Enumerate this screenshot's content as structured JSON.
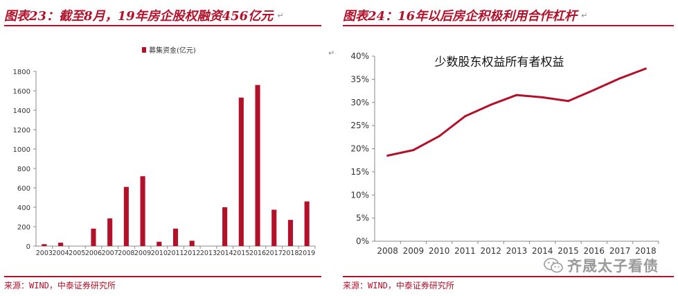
{
  "left": {
    "title": "图表23：截至8月，19年房企股权融资456亿元",
    "source": "来源：WIND，中泰证券研究所",
    "para_mark": "↵"
  },
  "right": {
    "title": "图表24：16年以后房企积极利用合作杠杆",
    "source": "来源：WIND，中泰证券研究所",
    "para_mark": "↵"
  },
  "watermark": {
    "text": "齐晟太子看债",
    "icon": "wechat-icon"
  },
  "accent_color": "#b3102a",
  "chart_data": [
    {
      "type": "bar",
      "title": "",
      "legend": [
        "募集资金(亿元)"
      ],
      "legend_position": "top-center",
      "categories": [
        "2003",
        "2004",
        "2005",
        "2006",
        "2007",
        "2008",
        "2009",
        "2010",
        "2011",
        "2012",
        "2013",
        "2014",
        "2015",
        "2016",
        "2017",
        "2018",
        "2019"
      ],
      "series": [
        {
          "name": "募集资金(亿元)",
          "values": [
            20,
            35,
            0,
            180,
            285,
            610,
            720,
            45,
            180,
            55,
            0,
            400,
            1530,
            1660,
            375,
            270,
            460
          ]
        }
      ],
      "ylim": [
        0,
        1800
      ],
      "yticks": [
        0,
        200,
        400,
        600,
        800,
        1000,
        1200,
        1400,
        1600,
        1800
      ],
      "grid": false,
      "color": "#b3102a"
    },
    {
      "type": "line",
      "title": "少数股东权益所有者权益",
      "x": [
        "2008",
        "2009",
        "2010",
        "2011",
        "2012",
        "2013",
        "2014",
        "2015",
        "2016",
        "2017",
        "2018"
      ],
      "series": [
        {
          "name": "",
          "values": [
            18.5,
            19.7,
            22.7,
            27.0,
            29.5,
            31.6,
            31.1,
            30.3,
            32.7,
            35.2,
            37.3
          ]
        }
      ],
      "ylim": [
        0,
        40
      ],
      "yticks": [
        "0%",
        "5%",
        "10%",
        "15%",
        "20%",
        "25%",
        "30%",
        "35%",
        "40%"
      ],
      "grid": false,
      "color": "#b3102a"
    }
  ]
}
